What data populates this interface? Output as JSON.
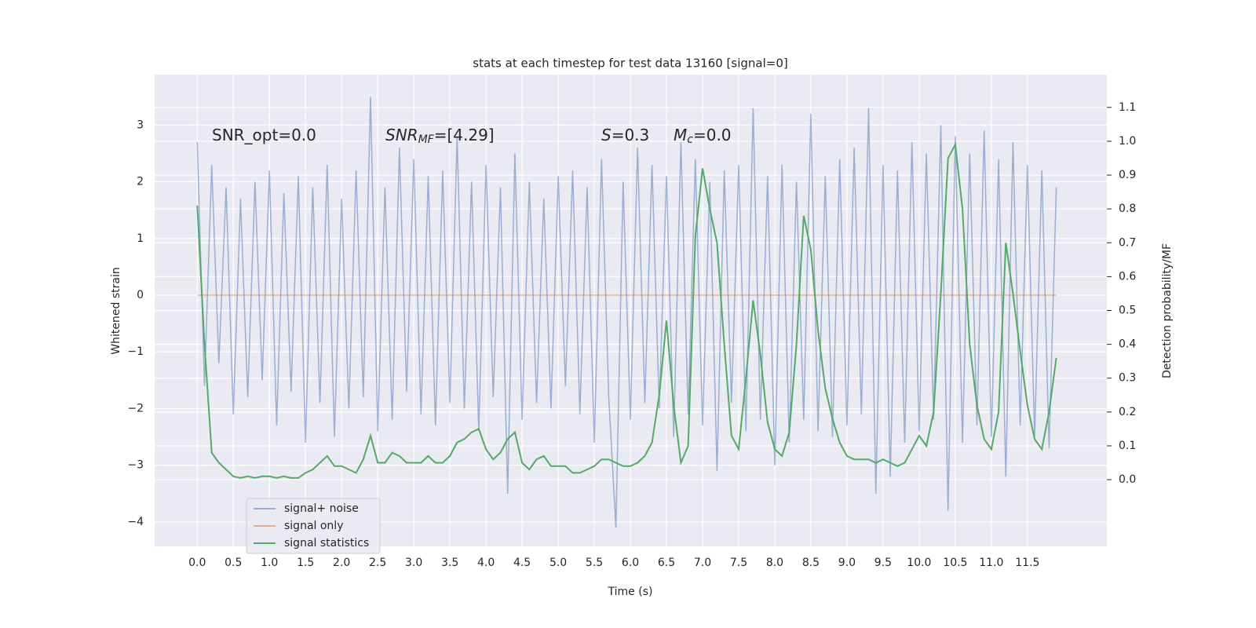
{
  "chart_data": {
    "type": "line",
    "title": "stats at each timestep for test data 13160 [signal=0]",
    "xlabel": "Time (s)",
    "ylabel": "Whitened strain",
    "y2label": "Detection probability/MF",
    "background": "#eaeaf2",
    "grid": true,
    "legend": "lower left",
    "annotations": [
      {
        "text": "SNR_opt=0.0"
      },
      {
        "main": "SNR",
        "sub": "MF",
        "text": "=[4.29]"
      },
      {
        "main": "S",
        "text": "=0.3"
      },
      {
        "main": "M",
        "sub": "c",
        "text": "=0.0"
      }
    ],
    "xlim": [
      -0.59,
      12.6
    ],
    "ylim": [
      -4.43,
      3.89
    ],
    "y2lim": [
      -0.197,
      1.197
    ],
    "xticks": [
      {
        "value": 0,
        "label": "0.0"
      },
      0.5,
      {
        "value": 1,
        "label": "1.0"
      },
      1.5,
      {
        "value": 2,
        "label": "2.0"
      },
      2.5,
      {
        "value": 3,
        "label": "3.0"
      },
      3.5,
      {
        "value": 4,
        "label": "4.0"
      },
      4.5,
      {
        "value": 5,
        "label": "5.0"
      },
      5.5,
      {
        "value": 6,
        "label": "6.0"
      },
      6.5,
      {
        "value": 7,
        "label": "7.0"
      },
      7.5,
      {
        "value": 8,
        "label": "8.0"
      },
      8.5,
      {
        "value": 9,
        "label": "9.0"
      },
      9.5,
      {
        "value": 10,
        "label": "10.0"
      },
      10.5,
      {
        "value": 11,
        "label": "11.0"
      },
      11.5
    ],
    "yticks": [
      {
        "value": -4,
        "label": "−4"
      },
      {
        "value": -3,
        "label": "−3"
      },
      {
        "value": -2,
        "label": "−2"
      },
      {
        "value": -1,
        "label": "−1"
      },
      0,
      1,
      2,
      3
    ],
    "y2ticks": [
      {
        "value": 0,
        "label": "0.0"
      },
      0.1,
      0.2,
      0.3,
      0.4,
      0.5,
      0.6,
      0.7,
      0.8,
      0.9,
      {
        "value": 1,
        "label": "1.0"
      },
      1.1
    ],
    "x": [
      0,
      0.1,
      0.2,
      0.3,
      0.4,
      0.5,
      0.6,
      0.7,
      0.8,
      0.9,
      1,
      1.1,
      1.2,
      1.3,
      1.4,
      1.5,
      1.6,
      1.7,
      1.8,
      1.9,
      2,
      2.1,
      2.2,
      2.3,
      2.4,
      2.5,
      2.6,
      2.7,
      2.8,
      2.9,
      3,
      3.1,
      3.2,
      3.3,
      3.4,
      3.5,
      3.6,
      3.7,
      3.8,
      3.9,
      4,
      4.1,
      4.2,
      4.3,
      4.4,
      4.5,
      4.6,
      4.7,
      4.8,
      4.9,
      5,
      5.1,
      5.2,
      5.3,
      5.4,
      5.5,
      5.6,
      5.7,
      5.8,
      5.9,
      6,
      6.1,
      6.2,
      6.3,
      6.4,
      6.5,
      6.6,
      6.7,
      6.8,
      6.9,
      7,
      7.1,
      7.2,
      7.3,
      7.4,
      7.5,
      7.6,
      7.7,
      7.8,
      7.9,
      8,
      8.1,
      8.2,
      8.3,
      8.4,
      8.5,
      8.6,
      8.7,
      8.8,
      8.9,
      9,
      9.1,
      9.2,
      9.3,
      9.4,
      9.5,
      9.6,
      9.7,
      9.8,
      9.9,
      10,
      10.1,
      10.2,
      10.3,
      10.4,
      10.5,
      10.6,
      10.7,
      10.8,
      10.9,
      11,
      11.1,
      11.2,
      11.3,
      11.4,
      11.5,
      11.6,
      11.7,
      11.8,
      11.9
    ],
    "series": [
      {
        "name": "signal+ noise",
        "color": "#4c72b0",
        "opacity": 0.5,
        "values": [
          2.7,
          -1.6,
          2.3,
          -1.2,
          1.9,
          -2.1,
          1.7,
          -1.8,
          2.0,
          -1.5,
          2.2,
          -2.3,
          1.8,
          -1.7,
          2.1,
          -2.6,
          1.9,
          -1.9,
          2.3,
          -2.5,
          1.7,
          -2.0,
          2.2,
          -1.8,
          3.5,
          -2.4,
          1.9,
          -2.2,
          2.6,
          -1.7,
          2.4,
          -2.1,
          2.1,
          -2.3,
          2.2,
          -1.9,
          2.8,
          -2.0,
          2.0,
          -2.4,
          2.3,
          -1.8,
          1.9,
          -3.5,
          2.5,
          -2.2,
          2.0,
          -1.9,
          1.7,
          -2.0,
          2.1,
          -1.6,
          2.2,
          -2.1,
          1.9,
          -2.6,
          2.4,
          -1.8,
          -4.1,
          2.0,
          -2.2,
          2.6,
          -1.9,
          2.3,
          -2.0,
          2.1,
          -2.5,
          2.7,
          -2.1,
          2.4,
          -2.3,
          2.0,
          -3.1,
          2.2,
          -1.9,
          2.3,
          -2.4,
          3.3,
          -2.2,
          2.1,
          -3.0,
          2.3,
          -2.6,
          2.0,
          -2.2,
          3.2,
          -2.4,
          2.1,
          -2.5,
          2.4,
          -2.3,
          2.6,
          -2.1,
          3.3,
          -3.5,
          2.3,
          -3.2,
          2.2,
          -2.6,
          2.7,
          -2.4,
          2.5,
          -2.2,
          3.0,
          -3.8,
          2.8,
          -2.6,
          2.5,
          -2.3,
          2.9,
          -2.5,
          2.4,
          -3.2,
          2.7,
          -2.3,
          2.3,
          -2.5,
          2.2,
          -2.7,
          1.9
        ]
      },
      {
        "name": "signal only",
        "color": "#dd8452",
        "opacity": 0.6,
        "values": [
          0,
          0,
          0,
          0,
          0,
          0,
          0,
          0,
          0,
          0,
          0,
          0,
          0,
          0,
          0,
          0,
          0,
          0,
          0,
          0,
          0,
          0,
          0,
          0,
          0,
          0,
          0,
          0,
          0,
          0,
          0,
          0,
          0,
          0,
          0,
          0,
          0,
          0,
          0,
          0,
          0,
          0,
          0,
          0,
          0,
          0,
          0,
          0,
          0,
          0,
          0,
          0,
          0,
          0,
          0,
          0,
          0,
          0,
          0,
          0,
          0,
          0,
          0,
          0,
          0,
          0,
          0,
          0,
          0,
          0,
          0,
          0,
          0,
          0,
          0,
          0,
          0,
          0,
          0,
          0,
          0,
          0,
          0,
          0,
          0,
          0,
          0,
          0,
          0,
          0,
          0,
          0,
          0,
          0,
          0,
          0,
          0,
          0,
          0,
          0,
          0,
          0,
          0,
          0,
          0,
          0,
          0,
          0,
          0,
          0,
          0,
          0,
          0,
          0,
          0,
          0,
          0,
          0,
          0,
          0
        ]
      },
      {
        "name": "signal statistics",
        "color": "#55a868",
        "opacity": 1,
        "axis": "y2",
        "values": [
          0.81,
          0.4,
          0.08,
          0.05,
          0.03,
          0.01,
          0.005,
          0.01,
          0.005,
          0.01,
          0.01,
          0.005,
          0.01,
          0.005,
          0.005,
          0.02,
          0.03,
          0.05,
          0.07,
          0.04,
          0.04,
          0.03,
          0.02,
          0.06,
          0.13,
          0.05,
          0.05,
          0.08,
          0.07,
          0.05,
          0.05,
          0.05,
          0.07,
          0.05,
          0.05,
          0.07,
          0.11,
          0.12,
          0.14,
          0.15,
          0.09,
          0.06,
          0.08,
          0.12,
          0.14,
          0.05,
          0.03,
          0.06,
          0.07,
          0.04,
          0.04,
          0.04,
          0.02,
          0.02,
          0.03,
          0.04,
          0.06,
          0.06,
          0.05,
          0.04,
          0.04,
          0.05,
          0.07,
          0.11,
          0.25,
          0.47,
          0.22,
          0.05,
          0.1,
          0.72,
          0.92,
          0.8,
          0.7,
          0.4,
          0.13,
          0.09,
          0.3,
          0.53,
          0.37,
          0.17,
          0.09,
          0.07,
          0.14,
          0.4,
          0.78,
          0.68,
          0.44,
          0.27,
          0.18,
          0.11,
          0.07,
          0.06,
          0.06,
          0.06,
          0.05,
          0.06,
          0.05,
          0.04,
          0.05,
          0.09,
          0.13,
          0.1,
          0.2,
          0.55,
          0.95,
          0.99,
          0.8,
          0.4,
          0.22,
          0.12,
          0.09,
          0.2,
          0.7,
          0.55,
          0.38,
          0.22,
          0.12,
          0.09,
          0.2,
          0.36
        ]
      }
    ]
  }
}
